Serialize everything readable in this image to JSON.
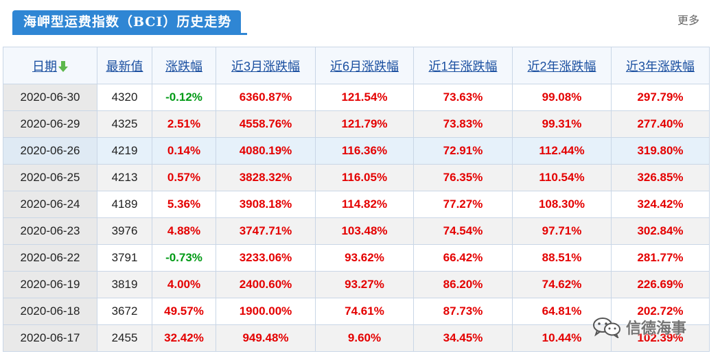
{
  "header": {
    "title": "海岬型运费指数（BCI）历史走势",
    "more_label": "更多"
  },
  "table": {
    "columns": [
      "日期",
      "最新值",
      "涨跌幅",
      "近3月涨跌幅",
      "近6月涨跌幅",
      "近1年涨跌幅",
      "近2年涨跌幅",
      "近3年涨跌幅"
    ],
    "sort_column": "日期",
    "rows": [
      {
        "date": "2020-06-30",
        "value": "4320",
        "change": "-0.12%",
        "m3": "6360.87%",
        "m6": "121.54%",
        "y1": "73.63%",
        "y2": "99.08%",
        "y3": "297.79%"
      },
      {
        "date": "2020-06-29",
        "value": "4325",
        "change": "2.51%",
        "m3": "4558.76%",
        "m6": "121.79%",
        "y1": "73.83%",
        "y2": "99.31%",
        "y3": "277.40%"
      },
      {
        "date": "2020-06-26",
        "value": "4219",
        "change": "0.14%",
        "m3": "4080.19%",
        "m6": "116.36%",
        "y1": "72.91%",
        "y2": "112.44%",
        "y3": "319.80%"
      },
      {
        "date": "2020-06-25",
        "value": "4213",
        "change": "0.57%",
        "m3": "3828.32%",
        "m6": "116.05%",
        "y1": "76.35%",
        "y2": "110.54%",
        "y3": "326.85%"
      },
      {
        "date": "2020-06-24",
        "value": "4189",
        "change": "5.36%",
        "m3": "3908.18%",
        "m6": "114.82%",
        "y1": "77.27%",
        "y2": "108.30%",
        "y3": "324.42%"
      },
      {
        "date": "2020-06-23",
        "value": "3976",
        "change": "4.88%",
        "m3": "3747.71%",
        "m6": "103.48%",
        "y1": "74.54%",
        "y2": "97.71%",
        "y3": "302.84%"
      },
      {
        "date": "2020-06-22",
        "value": "3791",
        "change": "-0.73%",
        "m3": "3233.06%",
        "m6": "93.62%",
        "y1": "66.42%",
        "y2": "88.51%",
        "y3": "281.77%"
      },
      {
        "date": "2020-06-19",
        "value": "3819",
        "change": "4.00%",
        "m3": "2400.60%",
        "m6": "93.27%",
        "y1": "86.20%",
        "y2": "74.62%",
        "y3": "226.69%"
      },
      {
        "date": "2020-06-18",
        "value": "3672",
        "change": "49.57%",
        "m3": "1900.00%",
        "m6": "74.61%",
        "y1": "87.73%",
        "y2": "64.81%",
        "y3": "202.72%"
      },
      {
        "date": "2020-06-17",
        "value": "2455",
        "change": "32.42%",
        "m3": "949.48%",
        "m6": "9.60%",
        "y1": "34.45%",
        "y2": "10.44%",
        "y3": "102.39%"
      }
    ]
  },
  "highlighted_row_date": "2020-06-26",
  "watermark": {
    "text": "信德海事",
    "icon": "wechat-icon"
  },
  "colors": {
    "tab_blue": "#2f86d4",
    "positive_red": "#e40000",
    "negative_green": "#009a15",
    "header_link_blue": "#1a4fa0",
    "sort_arrow_green": "#5db84c"
  }
}
